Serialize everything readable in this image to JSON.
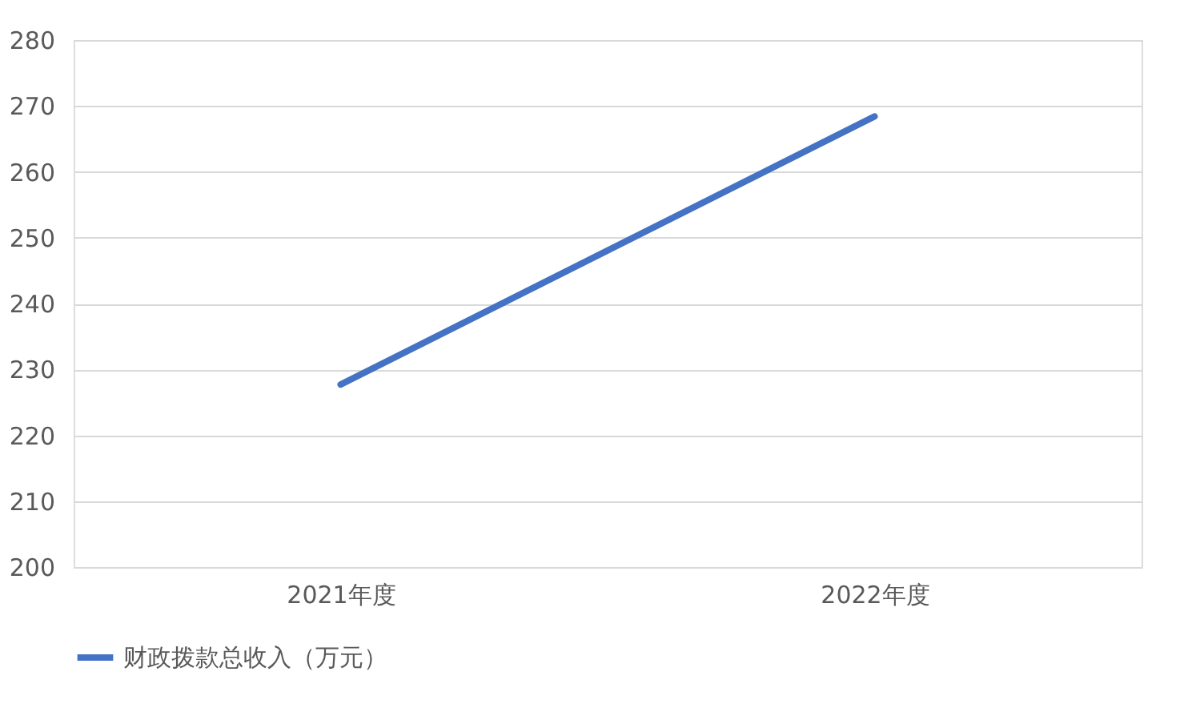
{
  "chart_data": {
    "type": "line",
    "categories": [
      "2021年度",
      "2022年度"
    ],
    "series": [
      {
        "name": "财政拨款总收入（万元）",
        "color": "#4472c4",
        "values": [
          227.7,
          268.4
        ]
      }
    ],
    "ylim": [
      200,
      280
    ],
    "yticks": [
      200,
      210,
      220,
      230,
      240,
      250,
      260,
      270,
      280
    ],
    "grid": "y",
    "legend": "bottom",
    "marker": "none"
  }
}
